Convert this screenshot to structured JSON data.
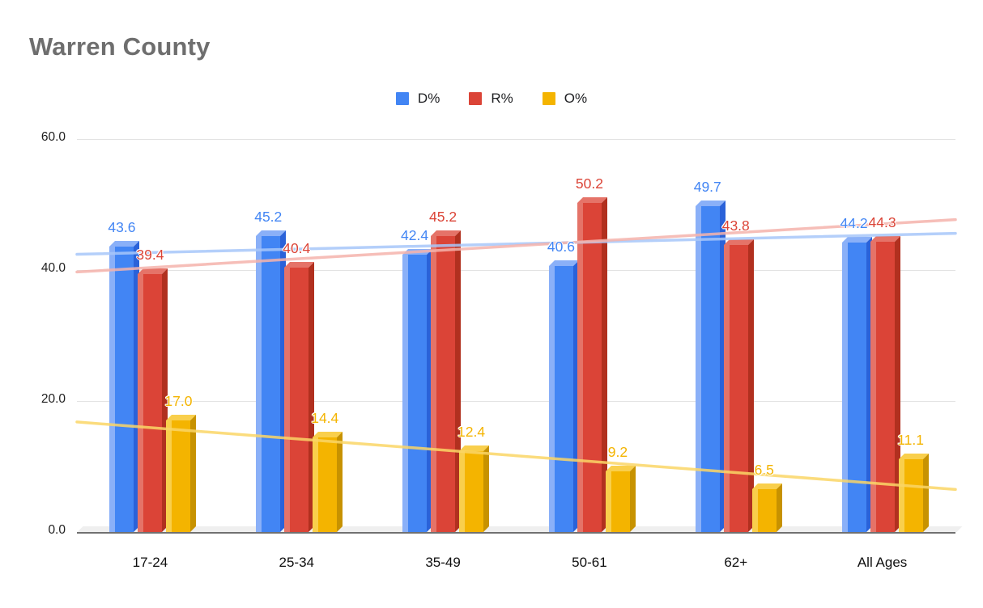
{
  "title": "Warren County",
  "chart_data": {
    "type": "bar",
    "title": "Warren County",
    "categories": [
      "17-24",
      "25-34",
      "35-49",
      "50-61",
      "62+",
      "All Ages"
    ],
    "series": [
      {
        "name": "D%",
        "color": "#4285f4",
        "light": "#8ab0f8",
        "dark": "#2a62d9",
        "values": [
          43.6,
          45.2,
          42.4,
          40.6,
          49.7,
          44.2
        ]
      },
      {
        "name": "R%",
        "color": "#db4437",
        "light": "#e57368",
        "dark": "#b1301f",
        "values": [
          39.4,
          40.4,
          45.2,
          50.2,
          43.8,
          44.3
        ]
      },
      {
        "name": "O%",
        "color": "#f4b400",
        "light": "#f9cf4c",
        "dark": "#c79200",
        "values": [
          17.0,
          14.4,
          12.4,
          9.2,
          6.5,
          11.1
        ]
      }
    ],
    "trendlines": [
      {
        "series": "D%",
        "color": "#a8c7fa",
        "start": 42.4,
        "end": 45.6
      },
      {
        "series": "R%",
        "color": "#f5b3ac",
        "start": 39.7,
        "end": 47.7
      },
      {
        "series": "O%",
        "color": "#fbd667",
        "start": 16.8,
        "end": 6.5
      }
    ],
    "ylim": [
      0,
      60
    ],
    "yticks": [
      "0.0",
      "20.0",
      "40.0",
      "60.0"
    ],
    "ytick_values": [
      0,
      20,
      40,
      60
    ],
    "grid": true,
    "legend_position": "top"
  }
}
